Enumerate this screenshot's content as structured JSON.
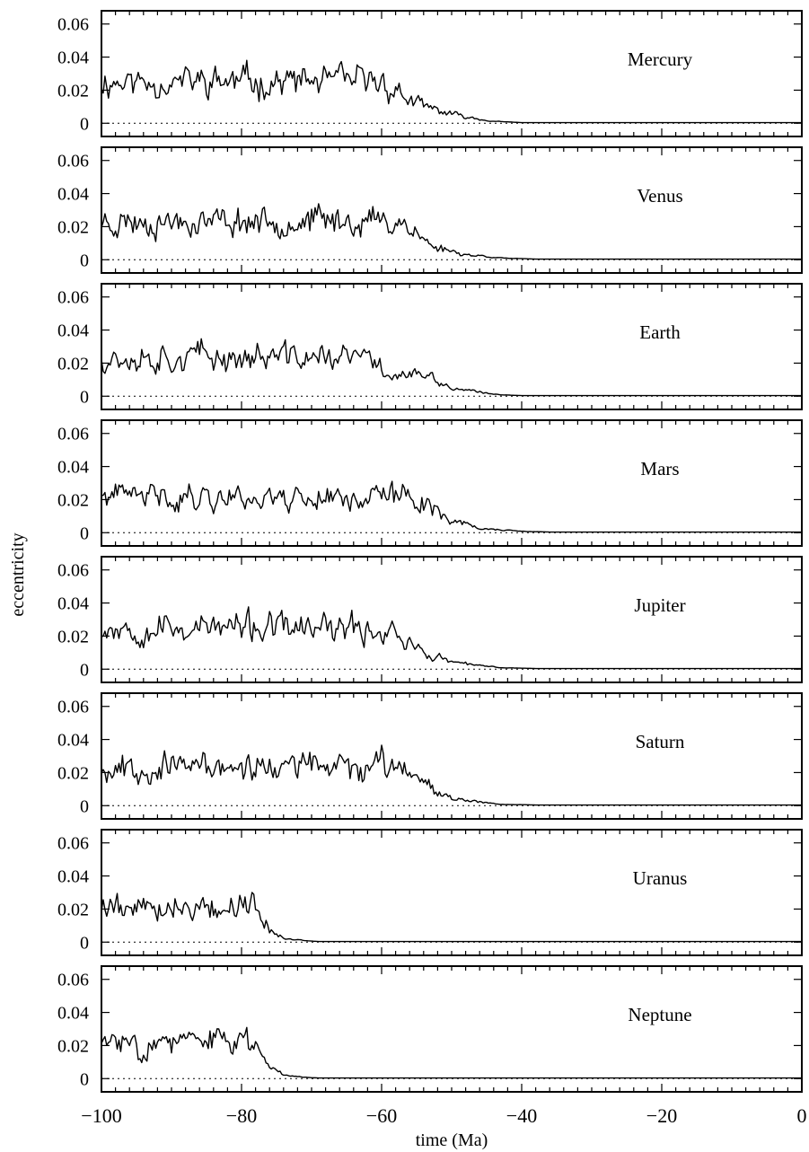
{
  "chart_data": {
    "type": "line",
    "xlabel": "time (Ma)",
    "ylabel": "eccentricity",
    "xlim": [
      -100,
      0
    ],
    "ylim": [
      -0.008,
      0.068
    ],
    "x_ticks": [
      -100,
      -80,
      -60,
      -40,
      -20,
      0
    ],
    "x_tick_labels": [
      "−100",
      "−80",
      "−60",
      "−40",
      "−20",
      "0"
    ],
    "y_ticks": [
      0,
      0.02,
      0.04,
      0.06
    ],
    "y_tick_labels": [
      "0",
      "0.02",
      "0.04",
      "0.06"
    ],
    "grid": false,
    "zero_line": "dotted",
    "line_color": "#000000",
    "panels": [
      {
        "label": "Mercury",
        "seed": 11,
        "amp": 0.03,
        "envelope": [
          [
            -100,
            1.0
          ],
          [
            -60,
            1.0
          ],
          [
            -55,
            0.45
          ],
          [
            -50,
            0.2
          ],
          [
            -44,
            0.03
          ],
          [
            -40,
            0.0
          ],
          [
            0,
            0.0
          ]
        ]
      },
      {
        "label": "Venus",
        "seed": 23,
        "amp": 0.028,
        "envelope": [
          [
            -100,
            1.0
          ],
          [
            -57,
            1.0
          ],
          [
            -53,
            0.35
          ],
          [
            -48,
            0.12
          ],
          [
            -42,
            0.02
          ],
          [
            -38,
            0.0
          ],
          [
            0,
            0.0
          ]
        ]
      },
      {
        "label": "Earth",
        "seed": 37,
        "amp": 0.029,
        "envelope": [
          [
            -100,
            1.0
          ],
          [
            -62,
            0.95
          ],
          [
            -59,
            0.55
          ],
          [
            -54,
            0.5
          ],
          [
            -50,
            0.18
          ],
          [
            -44,
            0.03
          ],
          [
            -40,
            0.0
          ],
          [
            0,
            0.0
          ]
        ]
      },
      {
        "label": "Mars",
        "seed": 41,
        "amp": 0.026,
        "envelope": [
          [
            -100,
            1.0
          ],
          [
            -55,
            1.0
          ],
          [
            -50,
            0.35
          ],
          [
            -46,
            0.1
          ],
          [
            -40,
            0.02
          ],
          [
            -36,
            0.0
          ],
          [
            0,
            0.0
          ]
        ]
      },
      {
        "label": "Jupiter",
        "seed": 53,
        "amp": 0.031,
        "envelope": [
          [
            -100,
            1.0
          ],
          [
            -58,
            0.9
          ],
          [
            -54,
            0.35
          ],
          [
            -49,
            0.12
          ],
          [
            -43,
            0.02
          ],
          [
            -38,
            0.0
          ],
          [
            0,
            0.0
          ]
        ]
      },
      {
        "label": "Saturn",
        "seed": 67,
        "amp": 0.028,
        "envelope": [
          [
            -100,
            1.0
          ],
          [
            -56,
            1.0
          ],
          [
            -52,
            0.35
          ],
          [
            -48,
            0.12
          ],
          [
            -43,
            0.02
          ],
          [
            -38,
            0.0
          ],
          [
            0,
            0.0
          ]
        ]
      },
      {
        "label": "Uranus",
        "seed": 79,
        "amp": 0.026,
        "envelope": [
          [
            -100,
            1.0
          ],
          [
            -78,
            1.0
          ],
          [
            -76,
            0.35
          ],
          [
            -74,
            0.1
          ],
          [
            -71,
            0.02
          ],
          [
            -69,
            0.0
          ],
          [
            0,
            0.0
          ]
        ]
      },
      {
        "label": "Neptune",
        "seed": 83,
        "amp": 0.026,
        "envelope": [
          [
            -100,
            1.0
          ],
          [
            -78,
            1.0
          ],
          [
            -76,
            0.35
          ],
          [
            -74,
            0.1
          ],
          [
            -71,
            0.02
          ],
          [
            -69,
            0.0
          ],
          [
            0,
            0.0
          ]
        ]
      }
    ]
  }
}
